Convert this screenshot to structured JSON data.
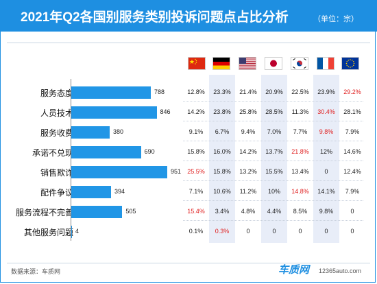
{
  "header": {
    "title": "2021年Q2各国别服务类别投诉问题点占比分析",
    "unit": "（单位：宗）"
  },
  "chart_data": {
    "type": "bar",
    "orientation": "horizontal",
    "categories": [
      "服务态度",
      "人员技术",
      "服务收费",
      "承诺不兑现",
      "销售欺诈",
      "配件争议",
      "服务流程不完善",
      "其他服务问题"
    ],
    "values": [
      788,
      846,
      380,
      690,
      951,
      394,
      505,
      4
    ],
    "bar_color": "#2196e6",
    "table": {
      "columns": [
        "china-flag",
        "germany-flag",
        "usa-flag",
        "japan-flag",
        "korea-flag",
        "france-flag",
        "eu-flag"
      ],
      "rows": [
        [
          "12.8%",
          "23.3%",
          "21.4%",
          "20.9%",
          "22.5%",
          "23.9%",
          "29.2%"
        ],
        [
          "14.2%",
          "23.8%",
          "25.8%",
          "28.5%",
          "11.3%",
          "30.4%",
          "28.1%"
        ],
        [
          "9.1%",
          "6.7%",
          "9.4%",
          "7.0%",
          "7.7%",
          "9.8%",
          "7.9%"
        ],
        [
          "15.8%",
          "16.0%",
          "14.2%",
          "13.7%",
          "21.8%",
          "12%",
          "14.6%"
        ],
        [
          "25.5%",
          "15.8%",
          "13.2%",
          "15.5%",
          "13.4%",
          "0",
          "12.4%"
        ],
        [
          "7.1%",
          "10.6%",
          "11.2%",
          "10%",
          "14.8%",
          "14.1%",
          "7.9%"
        ],
        [
          "15.4%",
          "3.4%",
          "4.8%",
          "4.4%",
          "8.5%",
          "9.8%",
          "0"
        ],
        [
          "0.1%",
          "0.3%",
          "0",
          "0",
          "0",
          "0",
          "0"
        ]
      ],
      "highlighted": [
        [
          0,
          6
        ],
        [
          1,
          5
        ],
        [
          2,
          5
        ],
        [
          3,
          4
        ],
        [
          4,
          0
        ],
        [
          5,
          4
        ],
        [
          6,
          0
        ],
        [
          7,
          1
        ]
      ],
      "highlight_color": "#e02020"
    }
  },
  "footer": {
    "source": "数据来源：车质网",
    "logo": "车质网",
    "url": "12365auto.com"
  }
}
